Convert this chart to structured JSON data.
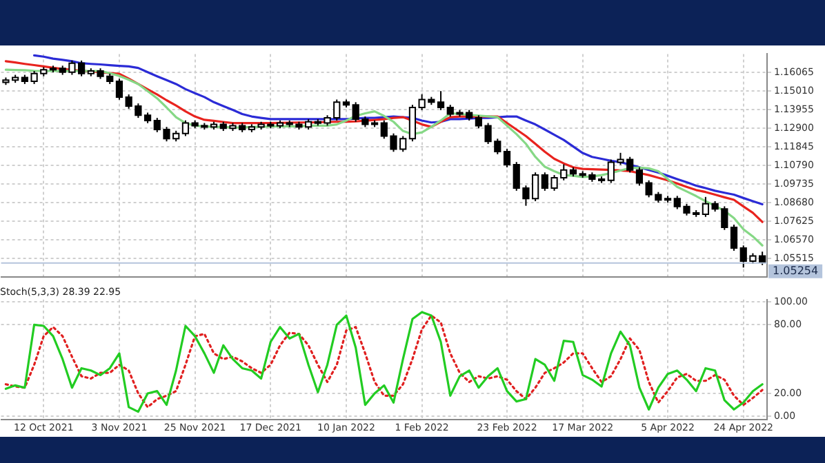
{
  "chart_data": [
    {
      "type": "candlestick",
      "categories": [
        null,
        null,
        null,
        null,
        null,
        null,
        null,
        null,
        null,
        null,
        null,
        null,
        null,
        null,
        null,
        null,
        null,
        null,
        null,
        null,
        null,
        null,
        null,
        null,
        null,
        null,
        null,
        null,
        null,
        null,
        null,
        null,
        null,
        null,
        null,
        null,
        null,
        null,
        null,
        null,
        null,
        null,
        null,
        null,
        null,
        null,
        null,
        null,
        null,
        null,
        null,
        null,
        null,
        null,
        null,
        null,
        null,
        null,
        null,
        null,
        null,
        null,
        null,
        null,
        null,
        null,
        null,
        null,
        null,
        null,
        null,
        null,
        null,
        null,
        null,
        null,
        null,
        null,
        null,
        null,
        null
      ],
      "ohlc": [
        [
          1.155,
          1.1577,
          1.1535,
          1.1562
        ],
        [
          1.1562,
          1.1592,
          1.1547,
          1.1577
        ],
        [
          1.1577,
          1.1592,
          1.154,
          1.1555
        ],
        [
          1.1555,
          1.1614,
          1.154,
          1.1599
        ],
        [
          1.1599,
          1.1636,
          1.1584,
          1.1621
        ],
        [
          1.1621,
          1.1644,
          1.1606,
          1.1629
        ],
        [
          1.1629,
          1.1644,
          1.1592,
          1.1607
        ],
        [
          1.1607,
          1.1673,
          1.1592,
          1.1658
        ],
        [
          1.1658,
          1.1673,
          1.1584,
          1.1599
        ],
        [
          1.1599,
          1.1629,
          1.1584,
          1.1614
        ],
        [
          1.1614,
          1.1629,
          1.1569,
          1.1584
        ],
        [
          1.1584,
          1.1599,
          1.154,
          1.1555
        ],
        [
          1.1555,
          1.157,
          1.1451,
          1.1466
        ],
        [
          1.1466,
          1.1481,
          1.14,
          1.1415
        ],
        [
          1.1415,
          1.143,
          1.1348,
          1.1363
        ],
        [
          1.1363,
          1.1378,
          1.1318,
          1.1333
        ],
        [
          1.1333,
          1.1348,
          1.1267,
          1.1282
        ],
        [
          1.1282,
          1.1297,
          1.1215,
          1.123
        ],
        [
          1.123,
          1.1275,
          1.1215,
          1.126
        ],
        [
          1.126,
          1.1334,
          1.1245,
          1.1319
        ],
        [
          1.1319,
          1.1334,
          1.1289,
          1.1304
        ],
        [
          1.1304,
          1.1319,
          1.1282,
          1.1297
        ],
        [
          1.1297,
          1.1326,
          1.1282,
          1.1311
        ],
        [
          1.1311,
          1.1326,
          1.1274,
          1.1289
        ],
        [
          1.1289,
          1.1319,
          1.1274,
          1.1304
        ],
        [
          1.1304,
          1.1319,
          1.1267,
          1.1282
        ],
        [
          1.1282,
          1.1312,
          1.1267,
          1.1297
        ],
        [
          1.1297,
          1.1326,
          1.1282,
          1.1311
        ],
        [
          1.1311,
          1.1326,
          1.1289,
          1.1304
        ],
        [
          1.1304,
          1.1334,
          1.1289,
          1.1319
        ],
        [
          1.1319,
          1.1334,
          1.1296,
          1.1311
        ],
        [
          1.1311,
          1.1326,
          1.1282,
          1.1297
        ],
        [
          1.1297,
          1.1341,
          1.1282,
          1.1326
        ],
        [
          1.1326,
          1.1341,
          1.1304,
          1.1319
        ],
        [
          1.1319,
          1.1363,
          1.1304,
          1.1348
        ],
        [
          1.1348,
          1.1452,
          1.1333,
          1.1437
        ],
        [
          1.1437,
          1.1452,
          1.1407,
          1.1422
        ],
        [
          1.1422,
          1.1437,
          1.1326,
          1.1341
        ],
        [
          1.1341,
          1.1356,
          1.1296,
          1.1311
        ],
        [
          1.1311,
          1.1334,
          1.1296,
          1.1319
        ],
        [
          1.1319,
          1.1334,
          1.123,
          1.1245
        ],
        [
          1.1245,
          1.126,
          1.1156,
          1.1171
        ],
        [
          1.1171,
          1.1245,
          1.1156,
          1.123
        ],
        [
          1.123,
          1.1422,
          1.1215,
          1.1407
        ],
        [
          1.1407,
          1.1482,
          1.1392,
          1.1452
        ],
        [
          1.1452,
          1.1467,
          1.1422,
          1.1437
        ],
        [
          1.1437,
          1.15,
          1.1392,
          1.1407
        ],
        [
          1.1407,
          1.1422,
          1.1355,
          1.137
        ],
        [
          1.137,
          1.1393,
          1.1355,
          1.1378
        ],
        [
          1.1378,
          1.1393,
          1.1333,
          1.1348
        ],
        [
          1.1348,
          1.1363,
          1.1289,
          1.1304
        ],
        [
          1.1304,
          1.1319,
          1.12,
          1.1215
        ],
        [
          1.1215,
          1.123,
          1.1142,
          1.1157
        ],
        [
          1.1157,
          1.1172,
          1.1068,
          1.1083
        ],
        [
          1.1083,
          1.1098,
          1.0935,
          1.095
        ],
        [
          1.095,
          1.0965,
          1.085,
          1.0891
        ],
        [
          1.0891,
          1.1039,
          1.0876,
          1.1024
        ],
        [
          1.1024,
          1.1039,
          1.0935,
          1.095
        ],
        [
          1.095,
          1.1024,
          1.0935,
          1.1009
        ],
        [
          1.1009,
          1.1085,
          1.0994,
          1.1053
        ],
        [
          1.1053,
          1.1068,
          1.1016,
          1.1031
        ],
        [
          1.1031,
          1.1046,
          1.1009,
          1.1024
        ],
        [
          1.1024,
          1.1039,
          1.0986,
          1.1001
        ],
        [
          1.1001,
          1.1016,
          1.0979,
          1.0994
        ],
        [
          1.0994,
          1.1112,
          1.0979,
          1.1097
        ],
        [
          1.1097,
          1.115,
          1.1082,
          1.1112
        ],
        [
          1.1112,
          1.1127,
          1.1038,
          1.1053
        ],
        [
          1.1053,
          1.1068,
          1.0964,
          1.0979
        ],
        [
          1.0979,
          1.0994,
          1.0898,
          1.0913
        ],
        [
          1.0913,
          1.0928,
          1.0868,
          1.0883
        ],
        [
          1.0883,
          1.0906,
          1.0868,
          1.0891
        ],
        [
          1.0891,
          1.0906,
          1.0831,
          1.0846
        ],
        [
          1.0846,
          1.0861,
          1.0795,
          1.081
        ],
        [
          1.081,
          1.0825,
          1.0787,
          1.0802
        ],
        [
          1.0802,
          1.09,
          1.0787,
          1.0861
        ],
        [
          1.0861,
          1.0876,
          1.0817,
          1.0832
        ],
        [
          1.0832,
          1.0847,
          1.0713,
          1.0728
        ],
        [
          1.0728,
          1.0743,
          1.0595,
          1.061
        ],
        [
          1.061,
          1.0625,
          1.05,
          1.0536
        ],
        [
          1.0536,
          1.0581,
          1.0521,
          1.0566
        ],
        [
          1.0566,
          1.059,
          1.0514,
          1.0529
        ]
      ],
      "series": [
        {
          "type": "line",
          "color": "#86d886",
          "values": [
            1.1621,
            1.1619,
            1.1618,
            1.1615,
            1.1614,
            1.1614,
            1.1614,
            1.1614,
            1.1614,
            1.1614,
            1.1614,
            1.1601,
            1.1586,
            1.1564,
            1.154,
            1.15,
            1.1459,
            1.1407,
            1.1352,
            1.1319,
            1.1304,
            1.13,
            1.1297,
            1.1297,
            1.1293,
            1.1293,
            1.1297,
            1.1297,
            1.13,
            1.13,
            1.13,
            1.13,
            1.1304,
            1.1304,
            1.1304,
            1.1311,
            1.1333,
            1.1359,
            1.1374,
            1.1385,
            1.1359,
            1.1326,
            1.1274,
            1.1256,
            1.1266,
            1.1297,
            1.1333,
            1.1374,
            1.137,
            1.1365,
            1.1361,
            1.1357,
            1.1352,
            1.1304,
            1.1256,
            1.1201,
            1.1127,
            1.1071,
            1.1046,
            1.1024,
            1.102,
            1.1013,
            1.1016,
            1.1024,
            1.1035,
            1.105,
            1.1064,
            1.1066,
            1.1062,
            1.1046,
            1.1001,
            1.0957,
            1.0931,
            1.0905,
            1.0876,
            1.085,
            1.0821,
            1.078,
            1.0717,
            1.0676,
            1.0625
          ]
        },
        {
          "type": "line",
          "color": "#e8231e",
          "values": [
            1.1669,
            1.1662,
            1.1654,
            1.1647,
            1.164,
            1.1632,
            1.1625,
            1.162,
            1.1615,
            1.1611,
            1.1607,
            1.1602,
            1.1598,
            1.157,
            1.154,
            1.151,
            1.1481,
            1.1448,
            1.1418,
            1.1385,
            1.1356,
            1.1337,
            1.1331,
            1.1325,
            1.1319,
            1.1319,
            1.1319,
            1.1319,
            1.1319,
            1.132,
            1.1321,
            1.1322,
            1.1322,
            1.1323,
            1.1325,
            1.1326,
            1.1326,
            1.1328,
            1.1332,
            1.1336,
            1.1341,
            1.1348,
            1.1352,
            1.1333,
            1.1311,
            1.1297,
            1.1326,
            1.1352,
            1.1356,
            1.1356,
            1.1356,
            1.1356,
            1.1356,
            1.1319,
            1.1282,
            1.1245,
            1.1201,
            1.1156,
            1.1116,
            1.109,
            1.1068,
            1.1059,
            1.1057,
            1.1055,
            1.1053,
            1.105,
            1.1046,
            1.1035,
            1.1024,
            1.1009,
            1.0994,
            1.0976,
            1.0957,
            1.0939,
            1.0928,
            1.0913,
            1.0898,
            1.0884,
            1.0846,
            1.081,
            1.0758
          ]
        },
        {
          "type": "line",
          "color": "#2b2bd6",
          "values": [
            null,
            null,
            null,
            1.1702,
            1.1695,
            1.1684,
            1.1677,
            1.1669,
            1.1658,
            1.1654,
            1.1651,
            1.1647,
            1.1643,
            1.164,
            1.1631,
            1.1607,
            1.1584,
            1.1562,
            1.154,
            1.1511,
            1.1488,
            1.1466,
            1.1437,
            1.1415,
            1.1393,
            1.137,
            1.1356,
            1.1348,
            1.1341,
            1.1341,
            1.1341,
            1.1341,
            1.1341,
            1.1341,
            1.1341,
            1.1341,
            1.1341,
            1.1344,
            1.1348,
            1.1348,
            1.1352,
            1.1356,
            1.1352,
            1.1348,
            1.1333,
            1.1322,
            1.1326,
            1.1341,
            1.1341,
            1.1344,
            1.1348,
            1.1348,
            1.1352,
            1.1356,
            1.1356,
            1.1333,
            1.1311,
            1.1282,
            1.1252,
            1.1223,
            1.1186,
            1.1149,
            1.1127,
            1.1116,
            1.1105,
            1.1097,
            1.1083,
            1.1068,
            1.1053,
            1.1038,
            1.102,
            1.1001,
            1.0983,
            1.0964,
            1.095,
            1.0935,
            1.0924,
            1.0913,
            1.0894,
            1.0876,
            1.0858
          ]
        }
      ],
      "ylim": [
        1.0448,
        1.171
      ],
      "yticks": [
        {
          "value": 1.16065,
          "label": "1.16065"
        },
        {
          "value": 1.1501,
          "label": "1.15010"
        },
        {
          "value": 1.13955,
          "label": "1.13955"
        },
        {
          "value": 1.129,
          "label": "1.12900"
        },
        {
          "value": 1.11845,
          "label": "1.11845"
        },
        {
          "value": 1.1079,
          "label": "1.10790"
        },
        {
          "value": 1.09735,
          "label": "1.09735"
        },
        {
          "value": 1.0868,
          "label": "1.08680"
        },
        {
          "value": 1.07625,
          "label": "1.07625"
        },
        {
          "value": 1.0657,
          "label": "1.06570"
        },
        {
          "value": 1.05515,
          "label": "1.05515"
        }
      ],
      "ref_lines": [
        {
          "axis": "y",
          "value": 1.05254,
          "label": "1.05254",
          "color": "#b4c4dc"
        }
      ],
      "grid": true,
      "tick_labels": "y"
    },
    {
      "type": "line",
      "title": "Stoch(5,3,3) 28.39 22.95",
      "categories": [
        null,
        null,
        null,
        null,
        "12 Oct 2021",
        null,
        null,
        null,
        null,
        null,
        null,
        null,
        "3 Nov 2021",
        null,
        null,
        null,
        null,
        null,
        null,
        null,
        "25 Nov 2021",
        null,
        null,
        null,
        null,
        null,
        null,
        null,
        "17 Dec 2021",
        null,
        null,
        null,
        null,
        null,
        null,
        null,
        "10 Jan 2022",
        null,
        null,
        null,
        null,
        null,
        null,
        null,
        "1 Feb 2022",
        null,
        null,
        null,
        null,
        null,
        null,
        null,
        null,
        "23 Feb 2022",
        null,
        null,
        null,
        null,
        null,
        null,
        null,
        "17 Mar 2022",
        null,
        null,
        null,
        null,
        null,
        null,
        null,
        null,
        "5 Apr 2022",
        null,
        null,
        null,
        null,
        null,
        null,
        null,
        "24 Apr 2022",
        null,
        null
      ],
      "series": [
        {
          "color": "#22cc22",
          "line_style": "solid",
          "values": [
            24,
            27,
            25,
            80,
            79,
            70,
            50,
            25,
            42,
            40,
            36,
            42,
            55,
            8,
            4,
            20,
            22,
            10,
            40,
            79,
            70,
            55,
            38,
            62,
            50,
            42,
            40,
            33,
            65,
            78,
            68,
            72,
            45,
            21,
            45,
            80,
            88,
            60,
            10,
            20,
            27,
            12,
            50,
            85,
            91,
            88,
            65,
            18,
            35,
            40,
            25,
            35,
            42,
            22,
            13,
            15,
            50,
            45,
            31,
            66,
            65,
            36,
            32,
            26,
            55,
            74,
            62,
            25,
            6,
            25,
            37,
            40,
            32,
            22,
            42,
            40,
            14,
            6,
            12,
            22,
            28
          ]
        },
        {
          "color": "#e02020",
          "line_style": "dotted",
          "values": [
            28,
            26,
            25,
            45,
            70,
            78,
            70,
            52,
            35,
            33,
            38,
            38,
            45,
            40,
            20,
            8,
            15,
            18,
            22,
            45,
            70,
            72,
            55,
            50,
            52,
            48,
            42,
            38,
            45,
            62,
            73,
            72,
            62,
            45,
            30,
            45,
            75,
            78,
            55,
            30,
            18,
            18,
            28,
            50,
            76,
            88,
            82,
            55,
            38,
            30,
            35,
            33,
            35,
            32,
            22,
            15,
            25,
            38,
            42,
            47,
            55,
            55,
            42,
            30,
            35,
            50,
            68,
            58,
            30,
            12,
            22,
            34,
            37,
            31,
            31,
            36,
            32,
            18,
            10,
            16,
            23
          ]
        }
      ],
      "ylim": [
        -3,
        102
      ],
      "yticks": [
        {
          "value": 0,
          "label": "0.00"
        },
        {
          "value": 20,
          "label": "20.00"
        },
        {
          "value": 80,
          "label": "80.00"
        },
        {
          "value": 100,
          "label": "100.00"
        }
      ],
      "grid": true
    }
  ]
}
